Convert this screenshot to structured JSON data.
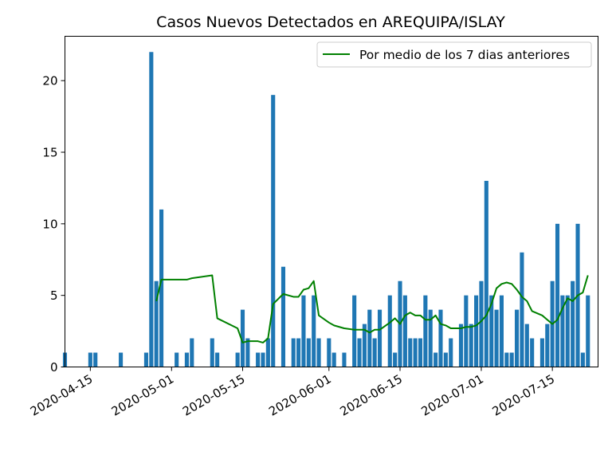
{
  "chart_data": {
    "type": "bar",
    "title": "Casos Nuevos Detectados en AREQUIPA/ISLAY",
    "xlabel": "",
    "ylabel": "",
    "ylim": [
      0,
      23.1
    ],
    "xlim": [
      "2020-04-10",
      "2020-07-24"
    ],
    "grid": false,
    "legend_position": "top-right",
    "x_ticks": [
      "2020-04-15",
      "2020-05-01",
      "2020-05-15",
      "2020-06-01",
      "2020-06-15",
      "2020-07-01",
      "2020-07-15"
    ],
    "y_ticks": [
      0,
      5,
      10,
      15,
      20
    ],
    "bar_color": "#1f77b4",
    "line_color": "#008000",
    "series": [
      {
        "type": "bar",
        "dates": [
          "2020-04-10",
          "2020-04-15",
          "2020-04-16",
          "2020-04-21",
          "2020-04-26",
          "2020-04-27",
          "2020-04-28",
          "2020-04-29",
          "2020-05-02",
          "2020-05-04",
          "2020-05-05",
          "2020-05-09",
          "2020-05-10",
          "2020-05-14",
          "2020-05-15",
          "2020-05-16",
          "2020-05-18",
          "2020-05-19",
          "2020-05-20",
          "2020-05-21",
          "2020-05-23",
          "2020-05-25",
          "2020-05-26",
          "2020-05-27",
          "2020-05-28",
          "2020-05-29",
          "2020-05-30",
          "2020-06-01",
          "2020-06-02",
          "2020-06-04",
          "2020-06-06",
          "2020-06-07",
          "2020-06-08",
          "2020-06-09",
          "2020-06-10",
          "2020-06-11",
          "2020-06-13",
          "2020-06-14",
          "2020-06-15",
          "2020-06-16",
          "2020-06-17",
          "2020-06-18",
          "2020-06-19",
          "2020-06-20",
          "2020-06-21",
          "2020-06-22",
          "2020-06-23",
          "2020-06-24",
          "2020-06-25",
          "2020-06-27",
          "2020-06-28",
          "2020-06-29",
          "2020-06-30",
          "2020-07-01",
          "2020-07-02",
          "2020-07-03",
          "2020-07-04",
          "2020-07-05",
          "2020-07-06",
          "2020-07-07",
          "2020-07-08",
          "2020-07-09",
          "2020-07-10",
          "2020-07-11",
          "2020-07-13",
          "2020-07-14",
          "2020-07-15",
          "2020-07-16",
          "2020-07-17",
          "2020-07-18",
          "2020-07-19",
          "2020-07-20",
          "2020-07-21",
          "2020-07-22"
        ],
        "values": [
          1,
          1,
          1,
          1,
          1,
          22,
          6,
          11,
          1,
          1,
          2,
          2,
          1,
          1,
          4,
          2,
          1,
          1,
          2,
          19,
          7,
          2,
          2,
          5,
          2,
          5,
          2,
          2,
          1,
          1,
          5,
          2,
          3,
          4,
          2,
          4,
          5,
          1,
          6,
          5,
          2,
          2,
          2,
          5,
          4,
          1,
          4,
          1,
          2,
          3,
          5,
          3,
          5,
          6,
          13,
          5,
          4,
          5,
          1,
          1,
          4,
          8,
          3,
          2,
          2,
          3,
          6,
          10,
          5,
          5,
          6,
          10,
          1,
          5
        ]
      },
      {
        "type": "line",
        "name": "Por medio de los 7 dias anteriores",
        "x": [
          "2020-04-28",
          "2020-04-29",
          "2020-05-04",
          "2020-05-05",
          "2020-05-09",
          "2020-05-10",
          "2020-05-14",
          "2020-05-15",
          "2020-05-16",
          "2020-05-18",
          "2020-05-19",
          "2020-05-20",
          "2020-05-21",
          "2020-05-23",
          "2020-05-25",
          "2020-05-26",
          "2020-05-27",
          "2020-05-28",
          "2020-05-29",
          "2020-05-30",
          "2020-06-01",
          "2020-06-02",
          "2020-06-04",
          "2020-06-06",
          "2020-06-07",
          "2020-06-08",
          "2020-06-09",
          "2020-06-10",
          "2020-06-11",
          "2020-06-13",
          "2020-06-14",
          "2020-06-15",
          "2020-06-16",
          "2020-06-17",
          "2020-06-18",
          "2020-06-19",
          "2020-06-20",
          "2020-06-21",
          "2020-06-22",
          "2020-06-23",
          "2020-06-24",
          "2020-06-25",
          "2020-06-27",
          "2020-06-28",
          "2020-06-29",
          "2020-06-30",
          "2020-07-01",
          "2020-07-02",
          "2020-07-03",
          "2020-07-04",
          "2020-07-05",
          "2020-07-06",
          "2020-07-07",
          "2020-07-08",
          "2020-07-09",
          "2020-07-10",
          "2020-07-11",
          "2020-07-13",
          "2020-07-14",
          "2020-07-15",
          "2020-07-16",
          "2020-07-17",
          "2020-07-18",
          "2020-07-19",
          "2020-07-20",
          "2020-07-21",
          "2020-07-22"
        ],
        "values": [
          4.6,
          6.1,
          6.1,
          6.2,
          6.4,
          3.4,
          2.7,
          1.7,
          1.8,
          1.8,
          1.7,
          2.0,
          4.4,
          5.1,
          4.9,
          4.9,
          5.4,
          5.5,
          6.0,
          3.6,
          3.1,
          2.9,
          2.7,
          2.6,
          2.6,
          2.6,
          2.4,
          2.6,
          2.6,
          3.1,
          3.4,
          3.0,
          3.6,
          3.8,
          3.6,
          3.6,
          3.3,
          3.3,
          3.6,
          3.0,
          2.9,
          2.7,
          2.7,
          2.8,
          2.8,
          2.9,
          3.2,
          3.6,
          4.4,
          5.5,
          5.8,
          5.9,
          5.8,
          5.4,
          4.9,
          4.6,
          3.9,
          3.6,
          3.3,
          3.0,
          3.3,
          4.1,
          4.8,
          4.6,
          5.0,
          5.2,
          6.4
        ]
      }
    ]
  }
}
